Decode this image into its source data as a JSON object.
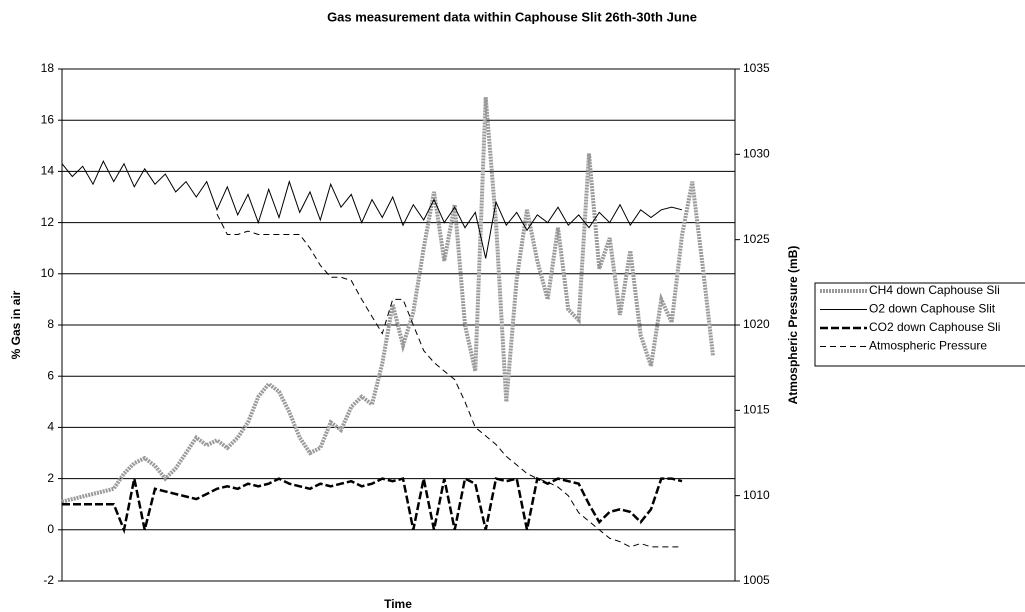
{
  "chart_data": {
    "type": "line",
    "title": "Gas measurement data within Caphouse Slit 26th-30th June",
    "x_label": "Time",
    "y_label": "% Gas in air",
    "y2_label": "Atmospheric Pressure (mB)",
    "ylim": [
      -2,
      18
    ],
    "yticks": [
      -2,
      0,
      2,
      4,
      6,
      8,
      10,
      12,
      14,
      16,
      18
    ],
    "y2lim": [
      1005,
      1035
    ],
    "y2ticks": [
      1005,
      1010,
      1015,
      1020,
      1025,
      1030,
      1035
    ],
    "grid": true,
    "legend": "right",
    "series": [
      {
        "name": "CH4 down Caphouse Sli",
        "color": "#9a9a9a",
        "width": 4,
        "dash": "2,1",
        "values": [
          1.1,
          1.2,
          1.3,
          1.4,
          1.5,
          1.6,
          2.2,
          2.6,
          2.8,
          2.5,
          2.0,
          2.4,
          3.0,
          3.6,
          3.3,
          3.5,
          3.2,
          3.6,
          4.2,
          5.2,
          5.7,
          5.4,
          4.6,
          3.6,
          3.0,
          3.2,
          4.2,
          3.9,
          4.8,
          5.2,
          4.9,
          6.5,
          8.8,
          7.2,
          8.5,
          11.0,
          13.2,
          10.5,
          12.7,
          8.0,
          6.2,
          16.9,
          12.0,
          5.0,
          9.8,
          12.5,
          10.5,
          9.0,
          11.8,
          8.6,
          8.2,
          14.7,
          10.2,
          11.4,
          8.4,
          10.9,
          7.6,
          6.4,
          9.0,
          8.1,
          11.5,
          13.6,
          10.3,
          6.8
        ]
      },
      {
        "name": "O2 down Caphouse Slit",
        "color": "#000000",
        "width": 1,
        "dash": "none",
        "values": [
          14.3,
          13.8,
          14.2,
          13.5,
          14.4,
          13.6,
          14.3,
          13.4,
          14.1,
          13.5,
          13.9,
          13.2,
          13.6,
          13.0,
          13.6,
          12.5,
          13.4,
          12.3,
          13.1,
          12.0,
          13.3,
          12.2,
          13.6,
          12.4,
          13.2,
          12.1,
          13.5,
          12.6,
          13.1,
          12.0,
          12.9,
          12.2,
          13.0,
          11.9,
          12.7,
          12.1,
          12.9,
          12.0,
          12.6,
          11.8,
          12.4,
          10.6,
          12.8,
          11.9,
          12.4,
          11.7,
          12.3,
          12.0,
          12.6,
          11.9,
          12.3,
          11.8,
          12.4,
          12.0,
          12.7,
          11.9,
          12.5,
          12.2,
          12.5,
          12.6,
          12.5,
          null,
          null,
          null
        ]
      },
      {
        "name": "CO2 down Caphouse Sli",
        "color": "#000000",
        "width": 2.5,
        "dash": "8,3",
        "values": [
          1.0,
          1.0,
          1.0,
          1.0,
          1.0,
          1.0,
          0,
          2.0,
          0,
          1.6,
          1.5,
          1.4,
          1.3,
          1.2,
          1.4,
          1.6,
          1.7,
          1.6,
          1.8,
          1.7,
          1.8,
          2.0,
          1.8,
          1.7,
          1.6,
          1.8,
          1.7,
          1.8,
          1.9,
          1.7,
          1.8,
          2.0,
          1.9,
          2.0,
          0,
          2.0,
          0,
          2.0,
          0,
          2.0,
          1.8,
          0,
          2.0,
          1.9,
          2.0,
          0,
          2.0,
          1.8,
          2.0,
          1.9,
          1.8,
          1.0,
          0.3,
          0.7,
          0.8,
          0.7,
          0.3,
          0.8,
          2.0,
          2.0,
          1.9,
          null,
          null,
          null
        ]
      },
      {
        "name": "Atmospheric Pressure",
        "color": "#000000",
        "width": 1,
        "dash": "6,4",
        "axis": "y2",
        "values": [
          null,
          null,
          null,
          null,
          null,
          null,
          null,
          null,
          null,
          null,
          null,
          null,
          null,
          null,
          null,
          1026.5,
          1025.3,
          1025.3,
          1025.5,
          1025.3,
          1025.3,
          1025.3,
          1025.3,
          1025.3,
          1024.5,
          1023.5,
          1022.8,
          1022.8,
          1022.6,
          1021.5,
          1020.5,
          1019.5,
          1021.5,
          1021.5,
          1020,
          1018.5,
          1017.8,
          1017.3,
          1016.8,
          1015.5,
          1014,
          1013.5,
          1013,
          1012.3,
          1011.8,
          1011.3,
          1011,
          1010.8,
          1010.5,
          1010,
          1009,
          1008.5,
          1008,
          1007.5,
          1007.3,
          1007,
          1007.2,
          1007,
          1007,
          1007,
          1007,
          null,
          null,
          null
        ]
      }
    ]
  }
}
